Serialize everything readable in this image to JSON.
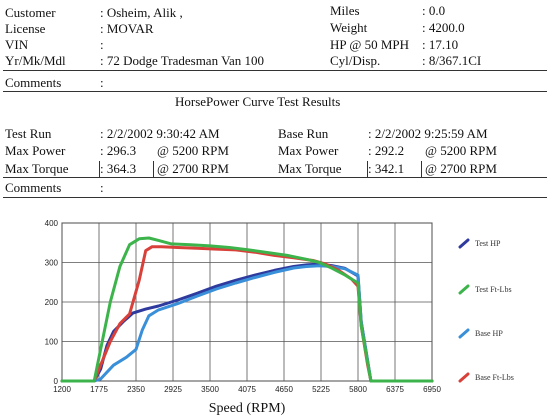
{
  "header": {
    "customer_label": "Customer",
    "customer_value": ": Osheim, Alik  ,",
    "license_label": "License",
    "license_value": ": MOVAR",
    "vin_label": "VIN",
    "vin_value": ":",
    "ymm_label": "Yr/Mk/Mdl",
    "ymm_value": ": 72 Dodge Tradesman Van 100",
    "miles_label": "Miles",
    "miles_value": ": 0.0",
    "weight_label": "Weight",
    "weight_value": ": 4200.0",
    "hp50_label": "HP @ 50 MPH",
    "hp50_value": ": 17.10",
    "cyl_label": "Cyl/Disp.",
    "cyl_value": ": 8/367.1CI",
    "comments_label": "Comments",
    "comments_value": ":"
  },
  "results": {
    "title": "HorsePower Curve Test Results",
    "test_run_label": "Test Run",
    "test_run_value": ": 2/2/2002 9:30:42 AM",
    "test_power_label": "Max Power",
    "test_power_value": ": 296.3",
    "test_power_rpm": "@ 5200  RPM",
    "test_torque_label": "Max Torque",
    "test_torque_value": ": 364.3",
    "test_torque_rpm": "@ 2700  RPM",
    "base_run_label": "Base Run",
    "base_run_value": ": 2/2/2002 9:25:59 AM",
    "base_power_label": "Max Power",
    "base_power_value": ": 292.2",
    "base_power_rpm": "@ 5200  RPM",
    "base_torque_label": "Max Torque",
    "base_torque_value": ": 342.1",
    "base_torque_rpm": "@ 2700  RPM",
    "comments_label": "Comments",
    "comments_value": ":"
  },
  "chart_data": {
    "type": "line",
    "xlabel": "Speed (RPM)",
    "ylabel": "",
    "xlim": [
      1200,
      6950
    ],
    "ylim": [
      0,
      400
    ],
    "x_ticks": [
      1200,
      1775,
      2350,
      2925,
      3500,
      4075,
      4650,
      5225,
      5800,
      6375,
      6950
    ],
    "y_ticks": [
      0,
      100,
      200,
      300,
      400
    ],
    "grid": true,
    "legend_position": "right",
    "series": [
      {
        "name": "Test HP",
        "color": "#2e3a9e",
        "x": [
          1200,
          1700,
          1800,
          1900,
          2000,
          2150,
          2300,
          2500,
          2700,
          3000,
          3300,
          3600,
          3900,
          4200,
          4500,
          4800,
          5000,
          5200,
          5400,
          5600,
          5800,
          5850,
          6000,
          6200,
          6950
        ],
        "y": [
          0,
          0,
          30,
          90,
          125,
          150,
          172,
          182,
          190,
          205,
          222,
          240,
          255,
          268,
          280,
          290,
          294,
          296,
          292,
          285,
          266,
          150,
          0,
          0,
          0
        ]
      },
      {
        "name": "Test Ft-Lbs",
        "color": "#3cb44b",
        "x": [
          1200,
          1700,
          1800,
          1950,
          2100,
          2250,
          2400,
          2550,
          2700,
          2900,
          3200,
          3500,
          3800,
          4100,
          4400,
          4700,
          5000,
          5200,
          5400,
          5600,
          5800,
          5850,
          6000,
          6200,
          6950
        ],
        "y": [
          0,
          0,
          80,
          200,
          290,
          345,
          360,
          362,
          356,
          347,
          345,
          342,
          338,
          332,
          325,
          318,
          308,
          300,
          285,
          268,
          248,
          140,
          0,
          0,
          0
        ]
      },
      {
        "name": "Base HP",
        "color": "#3a8fd9",
        "x": [
          1200,
          1700,
          1800,
          2000,
          2200,
          2350,
          2450,
          2550,
          2700,
          3000,
          3300,
          3600,
          3900,
          4200,
          4500,
          4800,
          5000,
          5200,
          5400,
          5600,
          5800,
          5850,
          6000,
          6200,
          6950
        ],
        "y": [
          0,
          0,
          5,
          40,
          60,
          80,
          130,
          165,
          180,
          196,
          215,
          233,
          248,
          262,
          275,
          286,
          290,
          292,
          290,
          284,
          268,
          150,
          0,
          0,
          0
        ]
      },
      {
        "name": "Base Ft-Lbs",
        "color": "#d9403a",
        "x": [
          1200,
          1700,
          1800,
          1950,
          2100,
          2250,
          2400,
          2500,
          2600,
          2750,
          3000,
          3300,
          3600,
          3900,
          4200,
          4500,
          4800,
          5100,
          5300,
          5500,
          5700,
          5800,
          5850,
          5950,
          6000,
          6200,
          6950
        ],
        "y": [
          0,
          0,
          40,
          100,
          145,
          170,
          255,
          330,
          340,
          340,
          338,
          336,
          334,
          332,
          326,
          318,
          312,
          305,
          296,
          280,
          258,
          240,
          140,
          40,
          0,
          0,
          0
        ]
      }
    ]
  }
}
